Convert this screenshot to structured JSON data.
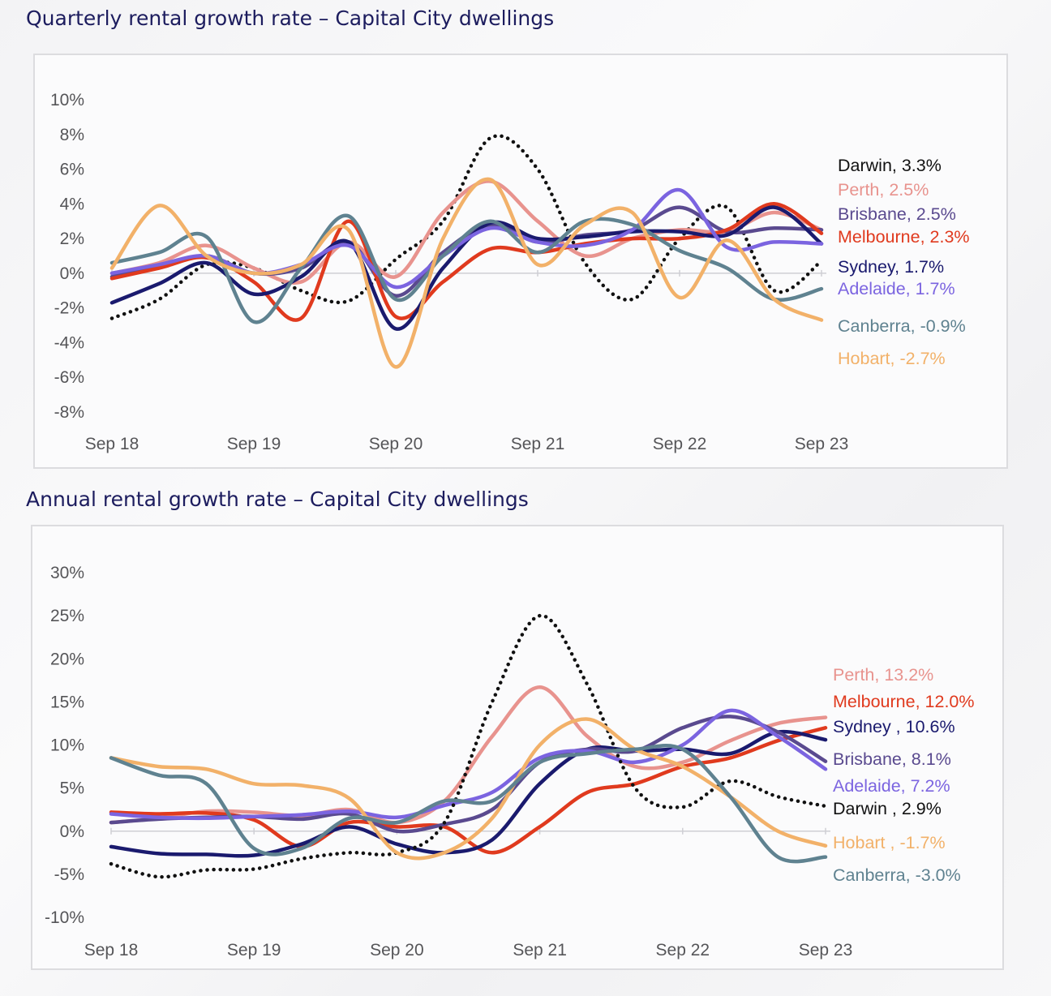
{
  "chart_data": [
    {
      "type": "line",
      "title": "Quarterly rental growth rate – Capital City dwellings",
      "x_tick_labels": [
        "Sep 18",
        "Sep 19",
        "Sep 20",
        "Sep 21",
        "Sep 22",
        "Sep 23"
      ],
      "y_tick_labels": [
        "10%",
        "8%",
        "6%",
        "4%",
        "2%",
        "0%",
        "-2%",
        "-4%",
        "-6%",
        "-8%"
      ],
      "ylim": [
        -8,
        10
      ],
      "x_unit": "months from Sep 18 (0 = Sep 18, 60 = Sep 23)",
      "grid": false,
      "legend": "end-of-line labels at right",
      "series": [
        {
          "name": "Darwin",
          "label": "Darwin, 3.3%",
          "color": "#111111",
          "dashed": true,
          "x": [
            0,
            4,
            8,
            12,
            16,
            20,
            24,
            28,
            32,
            36,
            40,
            44,
            48,
            52,
            56,
            60
          ],
          "y": [
            -2.6,
            -1.5,
            0.5,
            0.3,
            -1,
            -1.6,
            0.8,
            3,
            7.8,
            6,
            0.6,
            -1.5,
            2,
            3.8,
            -1,
            0.7
          ]
        },
        {
          "name": "Perth",
          "label": "Perth, 2.5%",
          "color": "#e8938e",
          "x": [
            0,
            4,
            8,
            12,
            16,
            20,
            24,
            28,
            32,
            36,
            40,
            44,
            48,
            52,
            56,
            60
          ],
          "y": [
            0,
            0.6,
            1.6,
            0.3,
            -0.5,
            1.8,
            -0.2,
            3.5,
            5.3,
            3,
            1,
            2,
            2.5,
            2.4,
            3.5,
            2.5
          ]
        },
        {
          "name": "Brisbane",
          "label": "Brisbane, 2.5%",
          "color": "#5a4a8f",
          "x": [
            0,
            4,
            8,
            12,
            16,
            20,
            24,
            28,
            32,
            36,
            40,
            44,
            48,
            52,
            56,
            60
          ],
          "y": [
            -0.2,
            0.4,
            1,
            0,
            0.3,
            1.8,
            -1.3,
            1.2,
            2.8,
            1.8,
            2.2,
            2.5,
            3.8,
            2.4,
            2.6,
            2.5
          ]
        },
        {
          "name": "Melbourne",
          "label": "Melbourne, 2.3%",
          "color": "#e03a1e",
          "x": [
            0,
            4,
            8,
            12,
            16,
            20,
            24,
            28,
            32,
            36,
            40,
            44,
            48,
            52,
            56,
            60
          ],
          "y": [
            -0.3,
            0.3,
            0.9,
            -0.5,
            -2.6,
            3,
            -2.5,
            -0.5,
            1.4,
            1.2,
            1.7,
            2,
            2,
            2.5,
            4,
            2.3
          ]
        },
        {
          "name": "Sydney",
          "label": "Sydney, 1.7%",
          "color": "#1a1a6e",
          "x": [
            0,
            4,
            8,
            12,
            16,
            20,
            24,
            28,
            32,
            36,
            40,
            44,
            48,
            52,
            56,
            60
          ],
          "y": [
            -1.7,
            -0.6,
            0.6,
            -1.2,
            -0.2,
            1.8,
            -3.2,
            0.3,
            2.9,
            2,
            2.1,
            2.4,
            2.4,
            2.2,
            3.8,
            1.7
          ]
        },
        {
          "name": "Adelaide",
          "label": "Adelaide, 1.7%",
          "color": "#7b64e0",
          "x": [
            0,
            4,
            8,
            12,
            16,
            20,
            24,
            28,
            32,
            36,
            40,
            44,
            48,
            52,
            56,
            60
          ],
          "y": [
            0,
            0.5,
            1,
            0,
            0.5,
            1.6,
            -0.8,
            1,
            2.6,
            1.8,
            1.6,
            2.5,
            4.8,
            1.5,
            1.8,
            1.7
          ]
        },
        {
          "name": "Canberra",
          "label": "Canberra, -0.9%",
          "color": "#5f8290",
          "x": [
            0,
            4,
            8,
            12,
            16,
            20,
            24,
            28,
            32,
            36,
            40,
            44,
            48,
            52,
            56,
            60
          ],
          "y": [
            0.6,
            1.2,
            2.1,
            -2.8,
            0.3,
            3.3,
            -1.5,
            1,
            3,
            1.2,
            3,
            2.8,
            1.3,
            0.3,
            -1.5,
            -0.9
          ]
        },
        {
          "name": "Hobart",
          "label": "Hobart, -2.7%",
          "color": "#f2b169",
          "x": [
            0,
            4,
            8,
            12,
            16,
            20,
            24,
            28,
            32,
            36,
            40,
            44,
            48,
            52,
            56,
            60
          ],
          "y": [
            0.3,
            3.9,
            1,
            0,
            0.5,
            2.5,
            -5.4,
            2,
            5.4,
            0.5,
            2.8,
            3.5,
            -1.4,
            1.9,
            -1.5,
            -2.7
          ]
        }
      ]
    },
    {
      "type": "line",
      "title": "Annual rental growth rate – Capital City dwellings",
      "x_tick_labels": [
        "Sep 18",
        "Sep 19",
        "Sep 20",
        "Sep 21",
        "Sep 22",
        "Sep 23"
      ],
      "y_tick_labels": [
        "30%",
        "25%",
        "20%",
        "15%",
        "10%",
        "5%",
        "0%",
        "-5%",
        "-10%"
      ],
      "ylim": [
        -10,
        30
      ],
      "x_unit": "months from Sep 18 (0 = Sep 18, 60 = Sep 23)",
      "grid": false,
      "legend": "end-of-line labels at right",
      "series": [
        {
          "name": "Perth",
          "label": "Perth, 13.2%",
          "color": "#e8938e",
          "x": [
            0,
            4,
            8,
            12,
            16,
            20,
            24,
            28,
            32,
            36,
            40,
            44,
            48,
            52,
            56,
            60
          ],
          "y": [
            1,
            1.5,
            2.3,
            2.2,
            1.8,
            2.5,
            1,
            3.5,
            11,
            16.7,
            11,
            7.5,
            8,
            10.5,
            12.5,
            13.2
          ]
        },
        {
          "name": "Melbourne",
          "label": "Melbourne, 12.0%",
          "color": "#e03a1e",
          "x": [
            0,
            4,
            8,
            12,
            16,
            20,
            24,
            28,
            32,
            36,
            40,
            44,
            48,
            52,
            56,
            60
          ],
          "y": [
            2.2,
            2,
            2.1,
            1.3,
            -1.8,
            1,
            0.5,
            0.5,
            -2.5,
            0.5,
            4.5,
            5.5,
            7.5,
            8.5,
            10.5,
            12
          ]
        },
        {
          "name": "Sydney",
          "label": "Sydney , 10.6%",
          "color": "#1a1a6e",
          "x": [
            0,
            4,
            8,
            12,
            16,
            20,
            24,
            28,
            32,
            36,
            40,
            44,
            48,
            52,
            56,
            60
          ],
          "y": [
            -1.8,
            -2.6,
            -2.7,
            -2.8,
            -1.5,
            0.5,
            -1.5,
            -2.5,
            -1,
            5.5,
            9.5,
            9.3,
            9.5,
            9,
            11.5,
            10.6
          ]
        },
        {
          "name": "Brisbane",
          "label": "Brisbane, 8.1%",
          "color": "#5a4a8f",
          "x": [
            0,
            4,
            8,
            12,
            16,
            20,
            24,
            28,
            32,
            36,
            40,
            44,
            48,
            52,
            56,
            60
          ],
          "y": [
            1,
            1.4,
            1.6,
            1.7,
            1.4,
            2,
            0,
            0.8,
            2.5,
            8,
            9.5,
            9.3,
            12,
            13.3,
            11.5,
            8.1
          ]
        },
        {
          "name": "Adelaide",
          "label": "Adelaide, 7.2%",
          "color": "#7b64e0",
          "x": [
            0,
            4,
            8,
            12,
            16,
            20,
            24,
            28,
            32,
            36,
            40,
            44,
            48,
            52,
            56,
            60
          ],
          "y": [
            2,
            1.6,
            1.5,
            1.7,
            1.9,
            2.3,
            1.6,
            3,
            4.5,
            8.5,
            9.3,
            8,
            10,
            14,
            11,
            7.2
          ]
        },
        {
          "name": "Darwin",
          "label": "Darwin , 2.9%",
          "color": "#111111",
          "dashed": true,
          "x": [
            0,
            4,
            8,
            12,
            16,
            20,
            24,
            28,
            32,
            36,
            40,
            44,
            48,
            52,
            56,
            60
          ],
          "y": [
            -3.8,
            -5.3,
            -4.5,
            -4.4,
            -3.2,
            -2.5,
            -2.5,
            1,
            15,
            25,
            17,
            5,
            2.8,
            5.8,
            4,
            2.9
          ]
        },
        {
          "name": "Hobart",
          "label": "Hobart , -1.7%",
          "color": "#f2b169",
          "x": [
            0,
            4,
            8,
            12,
            16,
            20,
            24,
            28,
            32,
            36,
            40,
            44,
            48,
            52,
            56,
            60
          ],
          "y": [
            8.5,
            7.5,
            7.2,
            5.5,
            5.3,
            3.8,
            -2.5,
            -2.5,
            1.5,
            10,
            13,
            9.5,
            7.5,
            4,
            0,
            -1.7
          ]
        },
        {
          "name": "Canberra",
          "label": "Canberra, -3.0%",
          "color": "#5f8290",
          "x": [
            0,
            4,
            8,
            12,
            16,
            20,
            24,
            28,
            32,
            36,
            40,
            44,
            48,
            52,
            56,
            60
          ],
          "y": [
            8.5,
            6.5,
            5.5,
            -2,
            -2,
            1.5,
            1,
            3.5,
            3.5,
            8,
            9,
            9.5,
            9.5,
            4,
            -3,
            -3
          ]
        }
      ]
    }
  ]
}
